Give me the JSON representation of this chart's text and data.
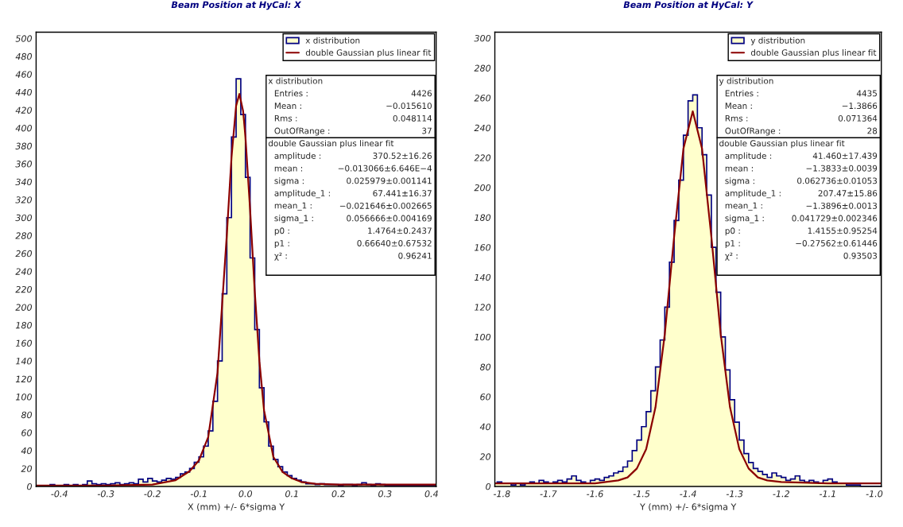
{
  "chart_data": [
    {
      "type": "histogram",
      "title": "Beam Position at HyCal: X",
      "xlabel": "X (mm) +/- 6*sigma Y",
      "bins": [
        -0.45,
        -0.44,
        -0.43,
        -0.42,
        -0.41,
        -0.4,
        -0.39,
        -0.38,
        -0.37,
        -0.36,
        -0.35,
        -0.34,
        -0.33,
        -0.32,
        -0.31,
        -0.3,
        -0.29,
        -0.28,
        -0.27,
        -0.26,
        -0.25,
        -0.24,
        -0.23,
        -0.22,
        -0.21,
        -0.2,
        -0.19,
        -0.18,
        -0.17,
        -0.16,
        -0.15,
        -0.14,
        -0.13,
        -0.12,
        -0.11,
        -0.1,
        -0.09,
        -0.08,
        -0.07,
        -0.06,
        -0.05,
        -0.04,
        -0.03,
        -0.02,
        -0.01,
        0.0,
        0.01,
        0.02,
        0.03,
        0.04,
        0.05,
        0.06,
        0.07,
        0.08,
        0.09,
        0.1,
        0.11,
        0.12,
        0.13,
        0.14,
        0.15,
        0.16,
        0.17,
        0.18,
        0.19,
        0.2,
        0.21,
        0.22,
        0.23,
        0.24,
        0.25,
        0.26,
        0.27,
        0.28,
        0.29,
        0.3,
        0.31,
        0.32,
        0.33,
        0.34,
        0.35,
        0.36,
        0.37,
        0.38,
        0.39,
        0.4,
        0.41
      ],
      "series": [
        {
          "name": "x distribution",
          "color": "#000080",
          "values": [
            1,
            1,
            1,
            2,
            1,
            1,
            2,
            1,
            2,
            1,
            2,
            6,
            3,
            2,
            3,
            2,
            3,
            4,
            2,
            3,
            4,
            3,
            8,
            5,
            9,
            6,
            5,
            7,
            9,
            8,
            10,
            14,
            16,
            20,
            27,
            33,
            45,
            62,
            95,
            140,
            215,
            300,
            390,
            455,
            415,
            345,
            255,
            175,
            110,
            72,
            45,
            30,
            22,
            16,
            12,
            9,
            7,
            5,
            3,
            3,
            2,
            3,
            2,
            2,
            2,
            1,
            2,
            2,
            1,
            2,
            4,
            2,
            1,
            3,
            2,
            1,
            1,
            1,
            1,
            1,
            1,
            1,
            1,
            1,
            1,
            1
          ]
        },
        {
          "type": "line",
          "name": "double Gaussian plus linear fit",
          "color": "#8b0000",
          "x": [
            -0.45,
            -0.3,
            -0.2,
            -0.15,
            -0.12,
            -0.1,
            -0.08,
            -0.06,
            -0.04,
            -0.03,
            -0.02,
            -0.013,
            -0.005,
            0.0,
            0.01,
            0.02,
            0.03,
            0.04,
            0.06,
            0.08,
            0.1,
            0.12,
            0.15,
            0.2,
            0.3,
            0.41
          ],
          "values": [
            1,
            1,
            2,
            7,
            17,
            29,
            55,
            127,
            281,
            367,
            425,
            438,
            419,
            390,
            309,
            218,
            140,
            85,
            33,
            16,
            9,
            5,
            3,
            2,
            2,
            2
          ]
        }
      ],
      "xlim": [
        -0.45,
        0.41
      ],
      "xticks": [
        -0.4,
        -0.3,
        -0.2,
        -0.1,
        {
          "value": 0,
          "label": "0.0"
        },
        0.1,
        0.2,
        0.3,
        0.4
      ],
      "ylim": [
        0,
        507
      ],
      "yticks": [
        0,
        20,
        40,
        60,
        80,
        100,
        120,
        140,
        160,
        180,
        200,
        220,
        240,
        260,
        280,
        300,
        320,
        340,
        360,
        380,
        400,
        420,
        440,
        460,
        480,
        500
      ],
      "legend": "top right",
      "annotations": [
        "x distribution",
        "Entries :",
        "4426",
        "Mean :",
        "−0.015610",
        "Rms :",
        "0.048114",
        "OutOfRange :",
        "37",
        "double Gaussian plus linear fit",
        "amplitude :",
        "370.52±16.26",
        "mean :",
        "−0.013066±6.646E−4",
        "sigma :",
        "0.025979±0.001141",
        "amplitude_1 :",
        "67.441±16.37",
        "mean_1 :",
        "−0.021646±0.002665",
        "sigma_1 :",
        "0.056666±0.004169",
        "p0 :",
        "1.4764±0.2437",
        "p1 :",
        "0.66640±0.67532",
        "χ² :",
        "0.96241"
      ]
    },
    {
      "type": "histogram",
      "title": "Beam Position at HyCal: Y",
      "xlabel": "Y (mm) +/- 6*sigma Y",
      "bins": [
        -1.82,
        -1.81,
        -1.8,
        -1.79,
        -1.78,
        -1.77,
        -1.76,
        -1.75,
        -1.74,
        -1.73,
        -1.72,
        -1.71,
        -1.7,
        -1.69,
        -1.68,
        -1.67,
        -1.66,
        -1.65,
        -1.64,
        -1.63,
        -1.62,
        -1.61,
        -1.6,
        -1.59,
        -1.58,
        -1.57,
        -1.56,
        -1.55,
        -1.54,
        -1.53,
        -1.52,
        -1.51,
        -1.5,
        -1.49,
        -1.48,
        -1.47,
        -1.46,
        -1.45,
        -1.44,
        -1.43,
        -1.42,
        -1.41,
        -1.4,
        -1.39,
        -1.38,
        -1.37,
        -1.36,
        -1.35,
        -1.34,
        -1.33,
        -1.32,
        -1.31,
        -1.3,
        -1.29,
        -1.28,
        -1.27,
        -1.26,
        -1.25,
        -1.24,
        -1.23,
        -1.22,
        -1.21,
        -1.2,
        -1.19,
        -1.18,
        -1.17,
        -1.16,
        -1.15,
        -1.14,
        -1.13,
        -1.12,
        -1.11,
        -1.1,
        -1.09,
        -1.08,
        -1.07,
        -1.06,
        -1.05,
        -1.04,
        -1.03,
        -1.02,
        -1.01,
        -1.0,
        -0.99,
        -0.98
      ],
      "series": [
        {
          "name": "y distribution",
          "color": "#000080",
          "values": [
            2,
            3,
            2,
            2,
            1,
            2,
            1,
            2,
            3,
            2,
            4,
            3,
            2,
            3,
            4,
            3,
            5,
            7,
            4,
            3,
            2,
            4,
            5,
            4,
            6,
            7,
            9,
            10,
            13,
            17,
            24,
            31,
            40,
            50,
            64,
            80,
            98,
            120,
            150,
            178,
            205,
            235,
            258,
            262,
            240,
            222,
            195,
            160,
            130,
            100,
            78,
            58,
            43,
            31,
            22,
            16,
            12,
            10,
            8,
            6,
            9,
            7,
            6,
            4,
            5,
            7,
            4,
            3,
            4,
            3,
            2,
            4,
            5,
            3,
            2,
            2,
            1,
            1,
            1,
            0,
            0,
            0,
            0,
            0
          ]
        },
        {
          "type": "line",
          "name": "double Gaussian plus linear fit",
          "color": "#8b0000",
          "x": [
            -1.815,
            -1.7,
            -1.6,
            -1.55,
            -1.53,
            -1.51,
            -1.49,
            -1.47,
            -1.45,
            -1.43,
            -1.41,
            -1.39,
            -1.37,
            -1.35,
            -1.33,
            -1.31,
            -1.29,
            -1.27,
            -1.25,
            -1.23,
            -1.2,
            -1.1,
            -0.985
          ],
          "values": [
            2,
            2,
            2,
            4,
            6,
            12,
            25,
            53,
            102,
            167,
            226,
            251,
            226,
            167,
            102,
            53,
            25,
            12,
            6,
            4,
            3,
            2,
            2
          ]
        }
      ],
      "xlim": [
        -1.815,
        -0.985
      ],
      "xticks": [
        -1.8,
        -1.7,
        -1.6,
        -1.5,
        -1.4,
        -1.3,
        -1.2,
        -1.1,
        {
          "value": -1,
          "label": "-1.0"
        }
      ],
      "ylim": [
        0,
        304
      ],
      "yticks": [
        0,
        20,
        40,
        60,
        80,
        100,
        120,
        140,
        160,
        180,
        200,
        220,
        240,
        260,
        280,
        300
      ],
      "legend": "top right",
      "annotations": [
        "y distribution",
        "Entries :",
        "4435",
        "Mean :",
        "−1.3866",
        "Rms :",
        "0.071364",
        "OutOfRange :",
        "28",
        "double Gaussian plus linear fit",
        "amplitude :",
        "41.460±17.439",
        "mean :",
        "−1.3833±0.0039",
        "sigma :",
        "0.062736±0.01053",
        "amplitude_1 :",
        "207.47±15.86",
        "mean_1 :",
        "−1.3896±0.0013",
        "sigma_1 :",
        "0.041729±0.002346",
        "p0 :",
        "1.4155±0.95254",
        "p1 :",
        "−0.27562±0.61446",
        "χ² :",
        "0.93503"
      ]
    }
  ]
}
